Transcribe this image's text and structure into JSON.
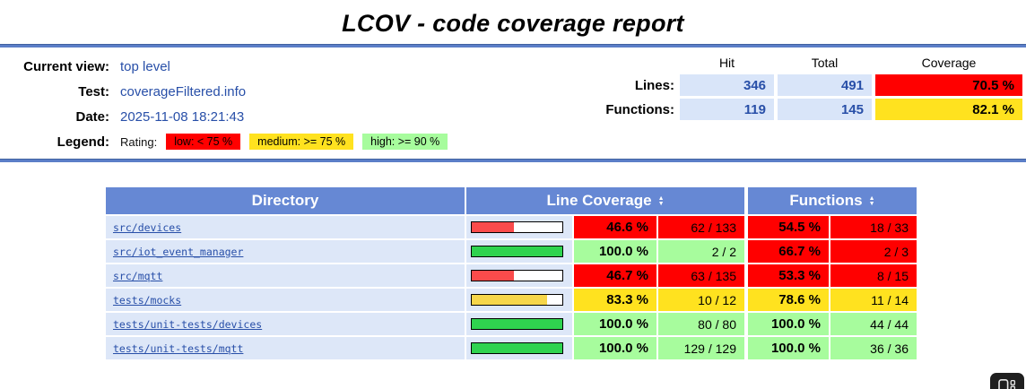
{
  "page_title": "LCOV - code coverage report",
  "header": {
    "rows": [
      {
        "label": "Current view:",
        "value": "top level"
      },
      {
        "label": "Test:",
        "value": "coverageFiltered.info"
      },
      {
        "label": "Date:",
        "value": "2025-11-08 18:21:43"
      }
    ],
    "legend_label": "Legend:",
    "rating_label": "Rating:",
    "legend_items": [
      {
        "label": "low: < 75 %",
        "level": "low"
      },
      {
        "label": "medium: >= 75 %",
        "level": "medium"
      },
      {
        "label": "high: >= 90 %",
        "level": "high"
      }
    ]
  },
  "summary": {
    "columns": [
      "Hit",
      "Total",
      "Coverage"
    ],
    "rows": [
      {
        "label": "Lines:",
        "hit": "346",
        "total": "491",
        "coverage": "70.5 %",
        "level": "low"
      },
      {
        "label": "Functions:",
        "hit": "119",
        "total": "145",
        "coverage": "82.1 %",
        "level": "medium"
      }
    ]
  },
  "table": {
    "headers": {
      "directory": "Directory",
      "line_coverage": "Line Coverage",
      "functions": "Functions"
    },
    "rows": [
      {
        "directory": "src/devices",
        "bar_pct": 46.6,
        "line_level": "low",
        "line_pct": "46.6 %",
        "line_ratio": "62 / 133",
        "func_level": "low",
        "func_pct": "54.5 %",
        "func_ratio": "18 / 33"
      },
      {
        "directory": "src/iot_event_manager",
        "bar_pct": 100,
        "line_level": "high",
        "line_pct": "100.0 %",
        "line_ratio": "2 / 2",
        "func_level": "low",
        "func_pct": "66.7 %",
        "func_ratio": "2 / 3"
      },
      {
        "directory": "src/mqtt",
        "bar_pct": 46.7,
        "line_level": "low",
        "line_pct": "46.7 %",
        "line_ratio": "63 / 135",
        "func_level": "low",
        "func_pct": "53.3 %",
        "func_ratio": "8 / 15"
      },
      {
        "directory": "tests/mocks",
        "bar_pct": 83.3,
        "line_level": "medium",
        "line_pct": "83.3 %",
        "line_ratio": "10 / 12",
        "func_level": "medium",
        "func_pct": "78.6 %",
        "func_ratio": "11 / 14"
      },
      {
        "directory": "tests/unit-tests/devices",
        "bar_pct": 100,
        "line_level": "high",
        "line_pct": "100.0 %",
        "line_ratio": "80 / 80",
        "func_level": "high",
        "func_pct": "100.0 %",
        "func_ratio": "44 / 44"
      },
      {
        "directory": "tests/unit-tests/mqtt",
        "bar_pct": 100,
        "line_level": "high",
        "line_pct": "100.0 %",
        "line_ratio": "129 / 129",
        "func_level": "high",
        "func_pct": "100.0 %",
        "func_ratio": "36 / 36"
      }
    ]
  },
  "colors": {
    "low": "#ff0000",
    "medium": "#ffe21f",
    "high": "#a7fc9d",
    "bar_low": "#fb4b4b",
    "bar_medium": "#f6d64a",
    "bar_high": "#2fd34f",
    "header_blue": "#6688d4",
    "row_blue": "#dde7f8",
    "cell_blue": "#d9e5f9",
    "link_blue": "#284fa8",
    "rule_blue": "#5b7ec7"
  },
  "overlay_badge": {
    "icon": "window-dots-icon"
  }
}
